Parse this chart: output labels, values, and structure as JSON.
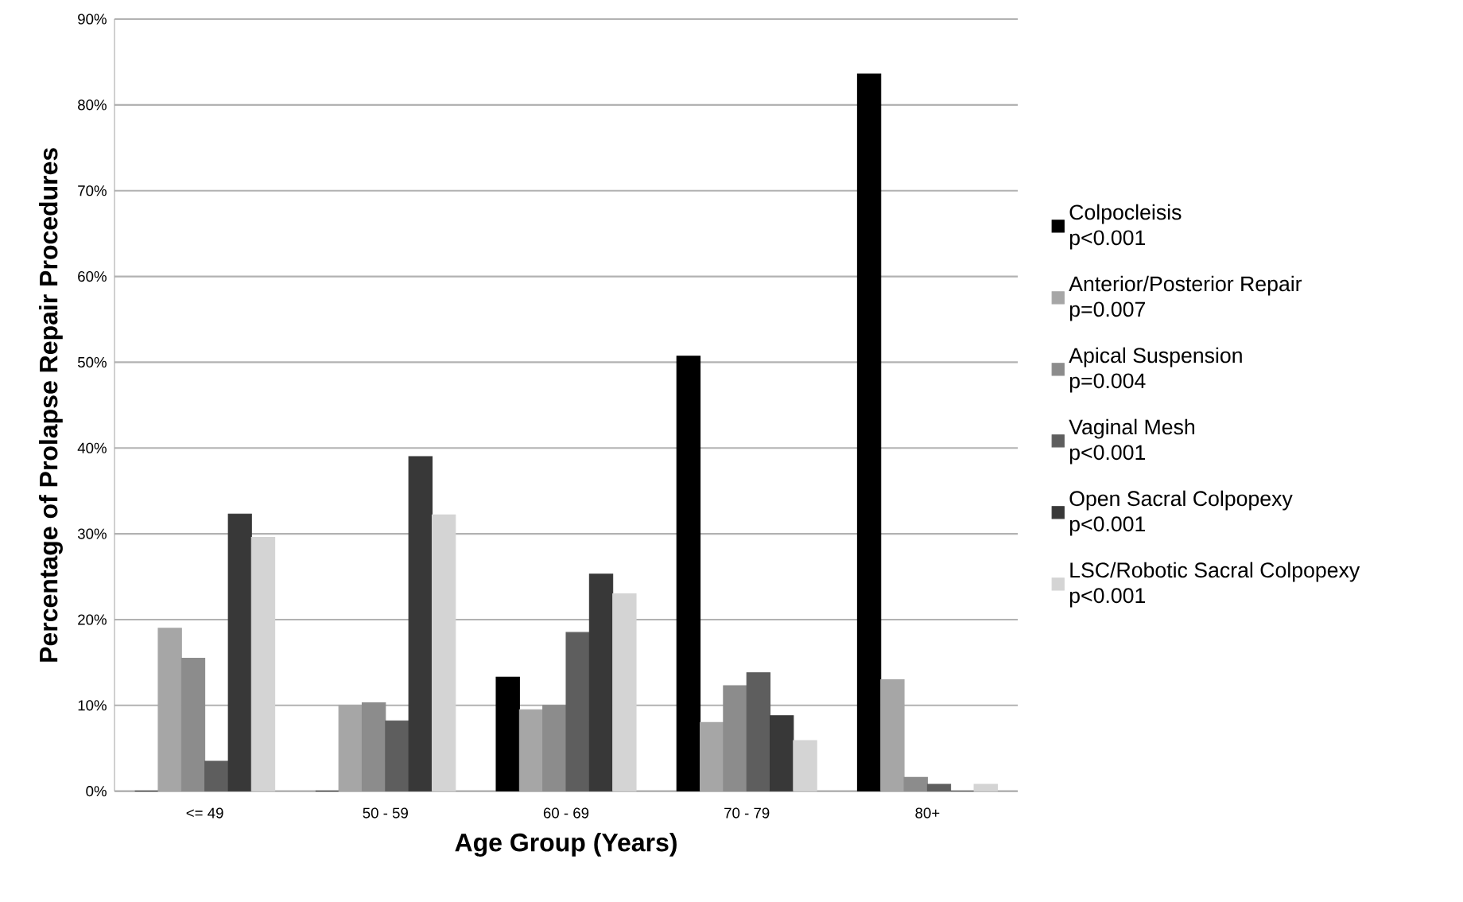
{
  "chart_data": {
    "type": "bar",
    "xlabel": "Age Group (Years)",
    "ylabel": "Percentage of Prolapse Repair Procedures",
    "categories": [
      "<= 49",
      "50 - 59",
      "60 - 69",
      "70 - 79",
      "80+"
    ],
    "series": [
      {
        "name": "Colpocleisis",
        "color": "#000000",
        "values": [
          0,
          0,
          13.3,
          50.7,
          83.6
        ]
      },
      {
        "name": "Anterior/Posterior Repair",
        "color": "#a6a6a6",
        "values": [
          19,
          10,
          9.5,
          8,
          13
        ]
      },
      {
        "name": "Apical Suspension",
        "color": "#8c8c8c",
        "values": [
          15.5,
          10.3,
          10,
          12.3,
          1.6
        ]
      },
      {
        "name": "Vaginal Mesh",
        "color": "#5e5e5e",
        "values": [
          3.5,
          8.2,
          18.5,
          13.8,
          0.8
        ]
      },
      {
        "name": "Open Sacral Colpopexy",
        "color": "#383838",
        "values": [
          32.3,
          39,
          25.3,
          8.8,
          0
        ]
      },
      {
        "name": "LSC/Robotic Sacral Colpopexy",
        "color": "#d4d4d4",
        "values": [
          29.6,
          32.2,
          23,
          5.9,
          0.8
        ]
      }
    ],
    "annotations": [
      "p<0.001",
      "p=0.007",
      "p=0.004",
      "p<0.001",
      "p<0.001",
      "p<0.001"
    ],
    "ylim": [
      0,
      90
    ],
    "yticks": [
      {
        "value": 0,
        "label": "0%"
      },
      {
        "value": 10,
        "label": "10%"
      },
      {
        "value": 20,
        "label": "20%"
      },
      {
        "value": 30,
        "label": "30%"
      },
      {
        "value": 40,
        "label": "40%"
      },
      {
        "value": 50,
        "label": "50%"
      },
      {
        "value": 60,
        "label": "60%"
      },
      {
        "value": 70,
        "label": "70%"
      },
      {
        "value": 80,
        "label": "80%"
      },
      {
        "value": 90,
        "label": "90%"
      }
    ],
    "grid": "y",
    "legend": "right"
  }
}
